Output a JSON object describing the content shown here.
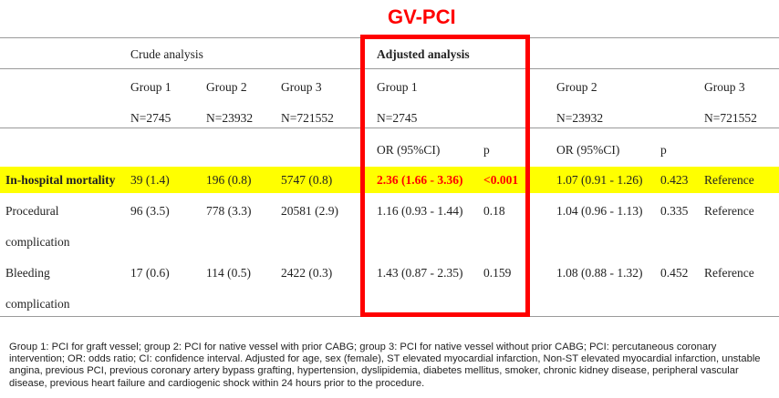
{
  "title": "GV-PCI",
  "header": {
    "crude": "Crude analysis",
    "adjusted": "Adjusted analysis"
  },
  "groups": {
    "crude": [
      {
        "label": "Group 1",
        "n": "N=2745"
      },
      {
        "label": "Group 2",
        "n": "N=23932"
      },
      {
        "label": "Group 3",
        "n": "N=721552"
      }
    ],
    "adjusted": [
      {
        "label": "Group 1",
        "n": "N=2745"
      },
      {
        "label": "Group 2",
        "n": "N=23932"
      },
      {
        "label": "Group 3",
        "n": "N=721552"
      }
    ]
  },
  "stat_headers": {
    "or": "OR (95%CI)",
    "p": "p"
  },
  "rows": [
    {
      "label": "In-hospital mortality",
      "c1": "39 (1.4)",
      "c2": "196 (0.8)",
      "c3": "5747 (0.8)",
      "g1_or": "2.36 (1.66 - 3.36)",
      "g1_p": "<0.001",
      "g2_or": "1.07 (0.91 - 1.26)",
      "g2_p": "0.423",
      "g3": "Reference"
    },
    {
      "label_line1": "Procedural",
      "label_line2": "complication",
      "c1": "96 (3.5)",
      "c2": "778 (3.3)",
      "c3": "20581 (2.9)",
      "g1_or": "1.16 (0.93 - 1.44)",
      "g1_p": "0.18",
      "g2_or": "1.04 (0.96 - 1.13)",
      "g2_p": "0.335",
      "g3": "Reference"
    },
    {
      "label_line1": "Bleeding",
      "label_line2": "complication",
      "c1": "17 (0.6)",
      "c2": "114 (0.5)",
      "c3": "2422 (0.3)",
      "g1_or": "1.43 (0.87 - 2.35)",
      "g1_p": "0.159",
      "g2_or": "1.08 (0.88 - 1.32)",
      "g2_p": "0.452",
      "g3": "Reference"
    }
  ],
  "footnote": "Group 1: PCI for graft vessel; group 2: PCI for native vessel with prior CABG; group 3: PCI for native vessel without prior CABG; PCI: percutaneous coronary intervention; OR: odds ratio; CI: confidence interval. Adjusted for age, sex (female), ST elevated myocardial infarction, Non-ST elevated myocardial infarction, unstable angina, previous PCI, previous coronary artery bypass grafting, hypertension, dyslipidemia, diabetes mellitus, smoker, chronic kidney disease, peripheral vascular disease, previous heart failure and cardiogenic shock within 24 hours prior to the procedure.",
  "colors": {
    "highlight": "#ffff00",
    "accent": "#ff0000"
  }
}
